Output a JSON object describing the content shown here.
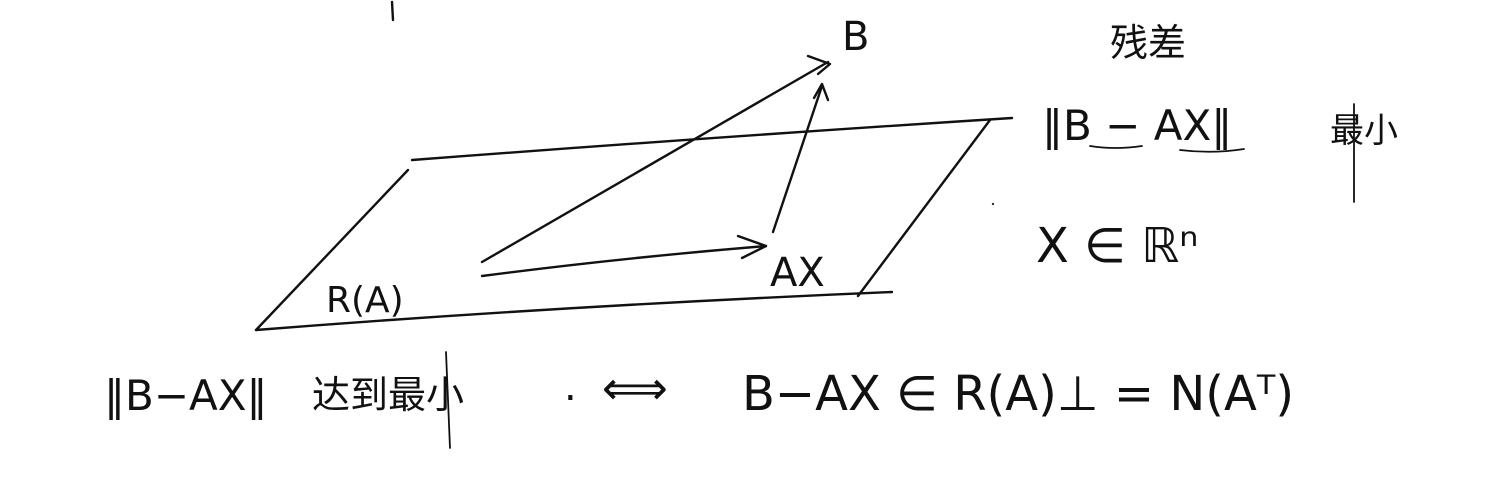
{
  "labels": {
    "point_b": "B",
    "point_ax": "AX",
    "plane_name": "R(A)",
    "residual_title": "残差",
    "residual_norm": "‖B − AX‖",
    "residual_min": "最小",
    "domain": "X ∈ ℝⁿ",
    "bottom_norm": "‖B−AX‖",
    "bottom_reach": "达到最小",
    "bottom_punct": ".",
    "bottom_iff": "⟺",
    "bottom_condition": "B−AX ∈ R(A)⊥ = N(Aᵀ)"
  }
}
